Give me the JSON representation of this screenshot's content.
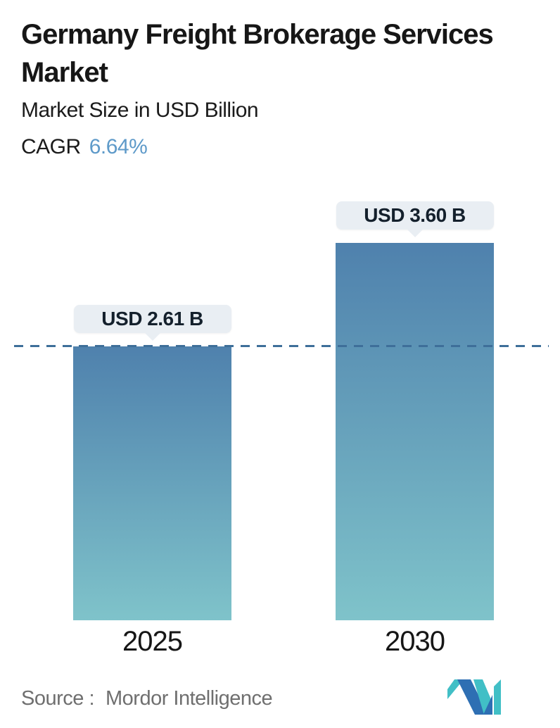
{
  "header": {
    "title": "Germany Freight Brokerage Services Market",
    "subtitle": "Market Size in USD Billion",
    "cagr_label": "CAGR",
    "cagr_value": "6.64%"
  },
  "chart_data": {
    "type": "bar",
    "title": "Germany Freight Brokerage Services Market",
    "ylabel": "Market Size in USD Billion",
    "cagr_percent": 6.64,
    "categories": [
      "2025",
      "2030"
    ],
    "values": [
      2.61,
      3.6
    ],
    "value_labels": [
      "USD 2.61 B",
      "USD 3.60 B"
    ],
    "ylim": [
      0,
      3.9
    ],
    "grid": false,
    "legend": false,
    "reference_line": {
      "value": 2.61,
      "style": "dashed",
      "color": "#3e6f99"
    },
    "bars": {
      "gradient_top": "#4f81ad",
      "gradient_bottom": "#7fc3ca",
      "label_bg": "#e9eef3"
    }
  },
  "footer": {
    "source_label": "Source :",
    "source_value": "Mordor Intelligence",
    "logo": {
      "icon": "mordor-intelligence-logo",
      "blue": "#2e6fb3",
      "teal": "#41bfc6"
    }
  }
}
